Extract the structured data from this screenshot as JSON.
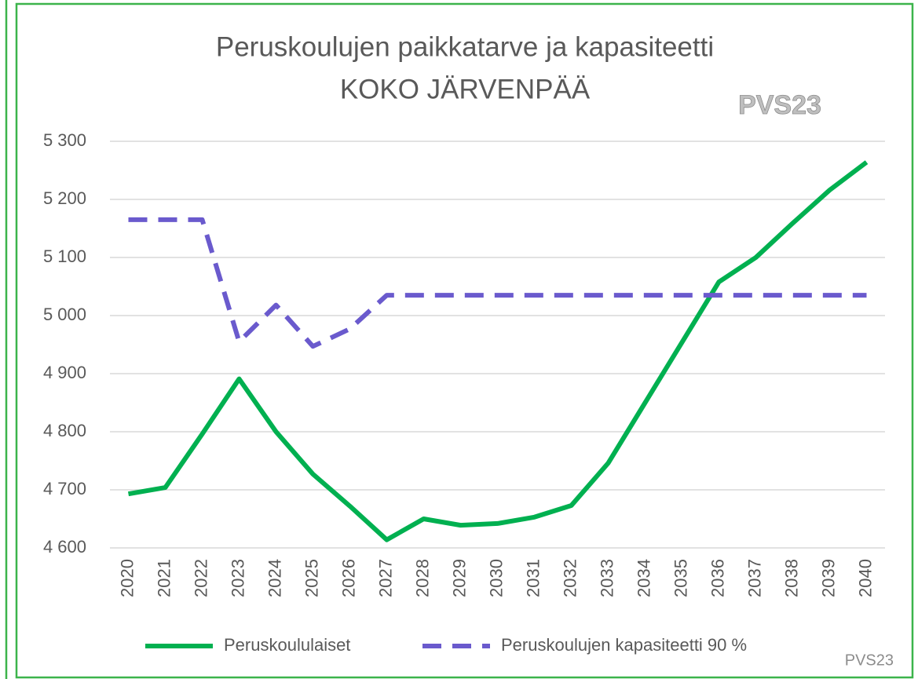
{
  "chart_data": {
    "type": "line",
    "title": "Peruskoulujen  paikkatarve ja kapasiteetti",
    "subtitle": "KOKO JÄRVENPÄÄ",
    "annotations": [
      "PVS23",
      "PVS23"
    ],
    "categories": [
      "2020",
      "2021",
      "2022",
      "2023",
      "2024",
      "2025",
      "2026",
      "2027",
      "2028",
      "2029",
      "2030",
      "2031",
      "2032",
      "2033",
      "2034",
      "2035",
      "2036",
      "2037",
      "2038",
      "2039",
      "2040"
    ],
    "series": [
      {
        "name": "Peruskoululaiset",
        "color": "#00b050",
        "dash": false,
        "values": [
          4693,
          4704,
          4796,
          4891,
          4800,
          4727,
          4672,
          4614,
          4650,
          4639,
          4642,
          4653,
          4673,
          4746,
          4850,
          4954,
          5058,
          5100,
          5159,
          5216,
          5264
        ]
      },
      {
        "name": "Peruskoulujen kapasiteetti 90 %",
        "color": "#6a5acd",
        "dash": true,
        "values": [
          5165,
          5165,
          5165,
          4955,
          5018,
          4947,
          4977,
          5035,
          5035,
          5035,
          5035,
          5035,
          5035,
          5035,
          5035,
          5035,
          5035,
          5035,
          5035,
          5035,
          5035
        ]
      }
    ],
    "ylim": [
      4600,
      5300
    ],
    "yticks": [
      {
        "value": 4600,
        "label": "4 600"
      },
      {
        "value": 4700,
        "label": "4 700"
      },
      {
        "value": 4800,
        "label": "4 800"
      },
      {
        "value": 4900,
        "label": "4 900"
      },
      {
        "value": 5000,
        "label": "5 000"
      },
      {
        "value": 5100,
        "label": "5 100"
      },
      {
        "value": 5200,
        "label": "5 200"
      },
      {
        "value": 5300,
        "label": "5 300"
      }
    ],
    "grid": true,
    "legend": "bottom"
  }
}
